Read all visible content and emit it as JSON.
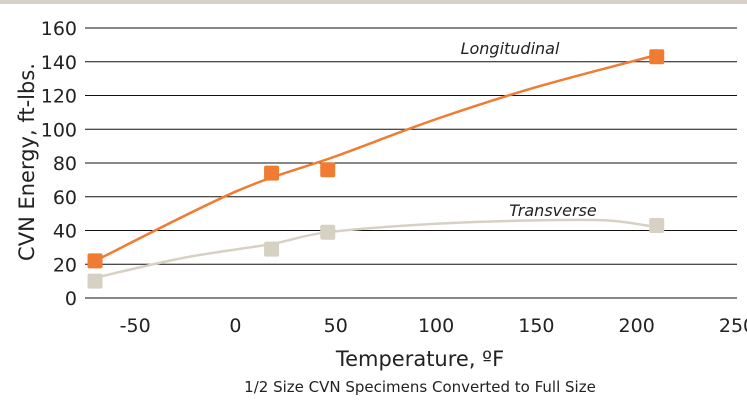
{
  "chart_data": {
    "type": "scatter",
    "title": "",
    "xlabel": "Temperature, ºF",
    "ylabel": "CVN Energy, ft-lbs.",
    "caption": "1/2 Size CVN Specimens Converted to Full Size",
    "xlim": [
      -75,
      250
    ],
    "ylim": [
      0,
      160
    ],
    "xticks": [
      "-50",
      "0",
      "50",
      "100",
      "150",
      "200",
      "250"
    ],
    "xtick_values": [
      -50,
      0,
      50,
      100,
      150,
      200,
      250
    ],
    "yticks": [
      "0",
      "20",
      "40",
      "60",
      "80",
      "100",
      "120",
      "140",
      "160"
    ],
    "ytick_values": [
      0,
      20,
      40,
      60,
      80,
      100,
      120,
      140,
      160
    ],
    "grid": "horizontal",
    "legend": "none (series labeled inline)",
    "series": [
      {
        "name": "Longitudinal",
        "color": "#f07b32",
        "points": [
          {
            "x": -70,
            "y": 22
          },
          {
            "x": 18,
            "y": 74
          },
          {
            "x": 46,
            "y": 76
          },
          {
            "x": 210,
            "y": 143
          }
        ],
        "trend": [
          {
            "x": -70,
            "y": 22
          },
          {
            "x": 0,
            "y": 63
          },
          {
            "x": 50,
            "y": 84
          },
          {
            "x": 100,
            "y": 106
          },
          {
            "x": 150,
            "y": 125
          },
          {
            "x": 210,
            "y": 144
          }
        ]
      },
      {
        "name": "Transverse",
        "color": "#d7d1c4",
        "points": [
          {
            "x": -70,
            "y": 10
          },
          {
            "x": 18,
            "y": 29
          },
          {
            "x": 46,
            "y": 39
          },
          {
            "x": 210,
            "y": 43
          }
        ],
        "trend": [
          {
            "x": -70,
            "y": 12
          },
          {
            "x": -25,
            "y": 24
          },
          {
            "x": 18,
            "y": 32
          },
          {
            "x": 46,
            "y": 39
          },
          {
            "x": 100,
            "y": 44
          },
          {
            "x": 150,
            "y": 46
          },
          {
            "x": 185,
            "y": 46
          },
          {
            "x": 210,
            "y": 42
          }
        ]
      }
    ]
  }
}
